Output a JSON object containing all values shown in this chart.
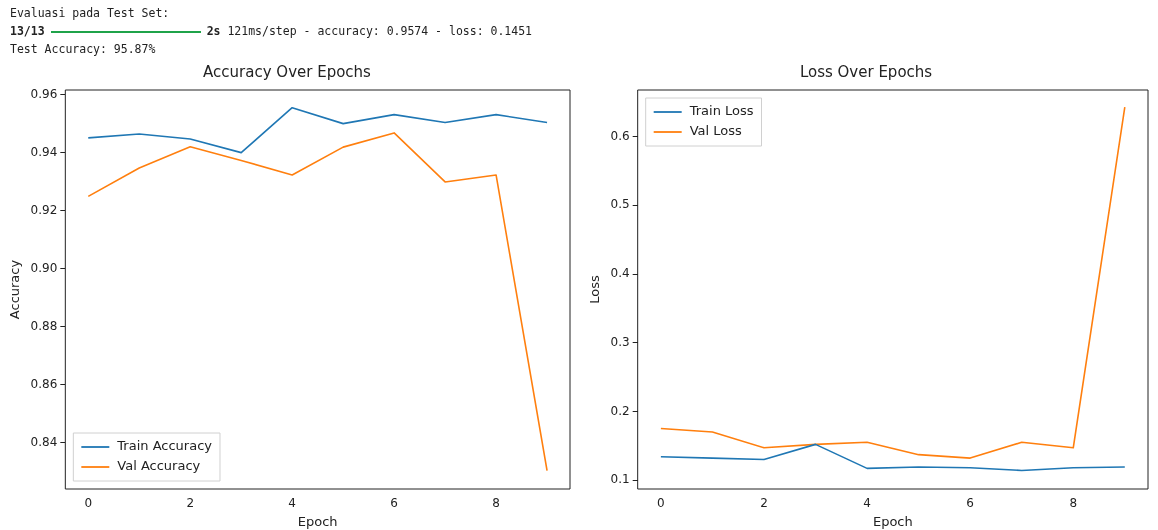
{
  "chart_data": [
    {
      "type": "other",
      "annotations": [
        "Evaluasi pada Test Set:",
        "13/13",
        "2s 121ms/step - accuracy: 0.9574 - loss: 0.1451",
        "Test Accuracy: 95.87%"
      ]
    },
    {
      "type": "line",
      "title": "Accuracy Over Epochs",
      "xlabel": "Epoch",
      "ylabel": "Accuracy",
      "x": [
        0,
        1,
        2,
        3,
        4,
        5,
        6,
        7,
        8,
        9
      ],
      "series": [
        {
          "name": "Train Accuracy",
          "color": "#1f77b4",
          "values": [
            0.9451,
            0.9464,
            0.9447,
            0.94,
            0.9555,
            0.95,
            0.9531,
            0.9504,
            0.9531,
            0.9504
          ]
        },
        {
          "name": "Val Accuracy",
          "color": "#ff7f0e",
          "values": [
            0.9249,
            0.9347,
            0.942,
            0.9373,
            0.9323,
            0.9419,
            0.9468,
            0.9299,
            0.9323,
            0.8303
          ]
        }
      ],
      "xlim": [
        -0.45,
        9.45
      ],
      "xticks": [
        0,
        2,
        4,
        6,
        8
      ],
      "ylim": [
        0.824,
        0.9616
      ],
      "yticks": [
        0.84,
        0.86,
        0.88,
        {
          "value": 0.9,
          "label": "0.90"
        },
        0.92,
        0.94,
        0.96
      ],
      "grid": false,
      "legend": "bottom left",
      "marker": "none",
      "line_style": "solid"
    },
    {
      "type": "line",
      "title": "Loss Over Epochs",
      "xlabel": "Epoch",
      "ylabel": "Loss",
      "x": [
        0,
        1,
        2,
        3,
        4,
        5,
        6,
        7,
        8,
        9
      ],
      "series": [
        {
          "name": "Train Loss",
          "color": "#1f77b4",
          "values": [
            0.134,
            0.132,
            0.13,
            0.152,
            0.117,
            0.119,
            0.118,
            0.114,
            0.118,
            0.119
          ]
        },
        {
          "name": "Val Loss",
          "color": "#ff7f0e",
          "values": [
            0.175,
            0.17,
            0.147,
            0.152,
            0.155,
            0.137,
            0.132,
            0.155,
            0.147,
            0.643
          ]
        }
      ],
      "xlim": [
        -0.45,
        9.45
      ],
      "xticks": [
        0,
        2,
        4,
        6,
        8
      ],
      "ylim": [
        0.087,
        0.668
      ],
      "yticks": [
        0.1,
        0.2,
        0.3,
        0.4,
        0.5,
        0.6
      ],
      "grid": false,
      "legend": "top left",
      "marker": "none",
      "line_style": "solid"
    }
  ]
}
